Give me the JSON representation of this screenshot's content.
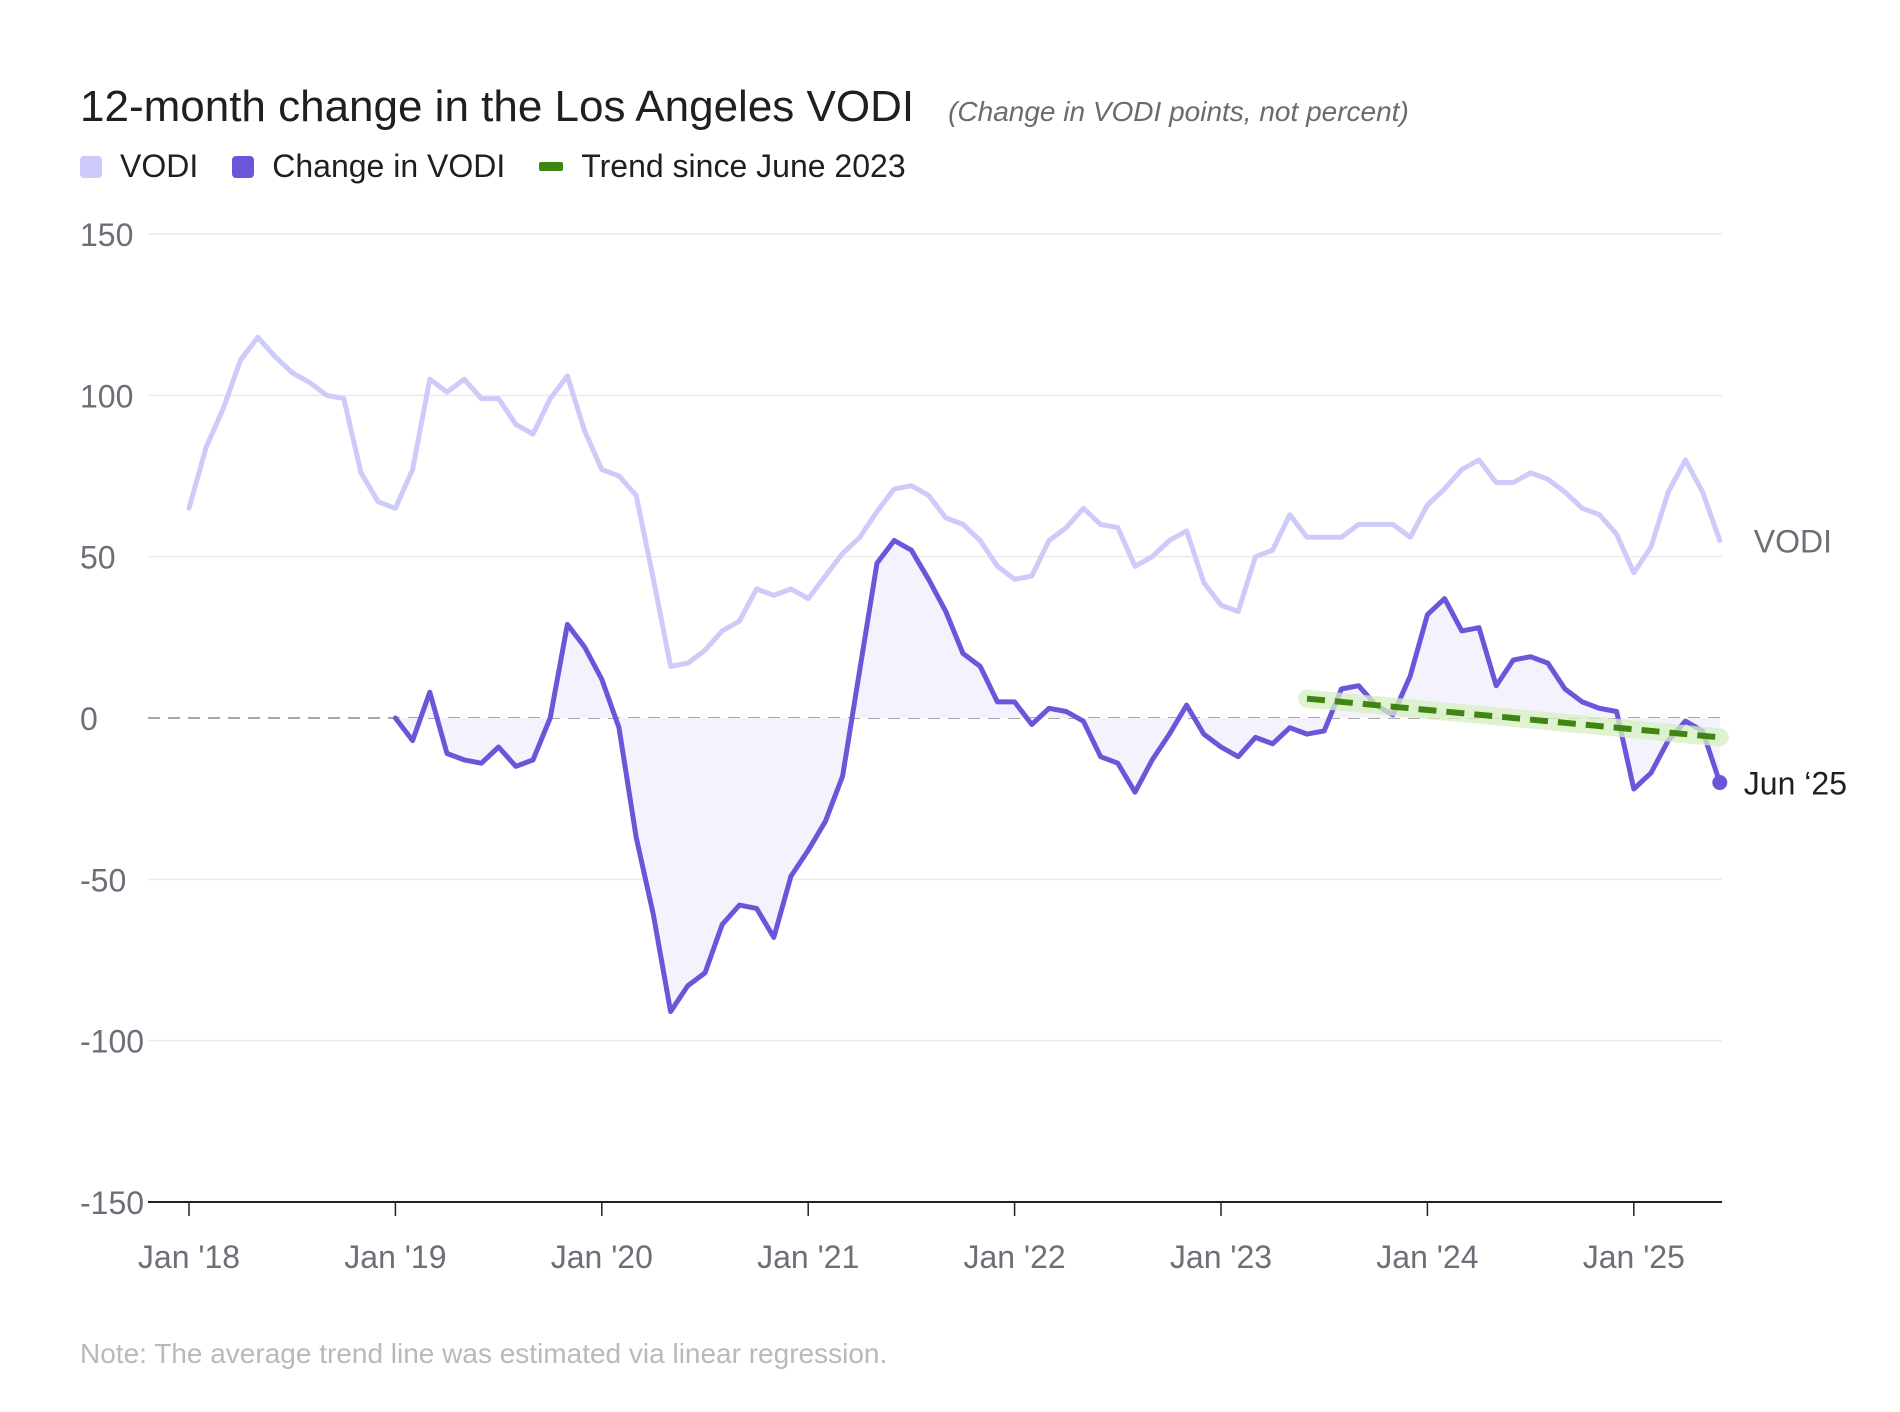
{
  "title": "12-month change in the Los Angeles VODI",
  "subtitle": "(Change in VODI points, not percent)",
  "legend": [
    {
      "label": "VODI",
      "color": "#cdcbfa",
      "shape": "square"
    },
    {
      "label": "Change in VODI",
      "color": "#6a56d9",
      "shape": "square"
    },
    {
      "label": "Trend since June 2023",
      "color": "#3f8512",
      "shape": "dash"
    }
  ],
  "note": "Note: The average trend line was estimated via linear regression.",
  "colors": {
    "vodi": "#cdcbfa",
    "change": "#6a56d9",
    "trend": "#3f8512",
    "trend_halo": "#d6f0c2",
    "fill": "#f4f3fd",
    "grid": "#ebebeb",
    "axis": "#222222",
    "zero_line": "#888888",
    "tick_text": "#6e6e78"
  },
  "chart_data": {
    "type": "line",
    "title": "12-month change in the Los Angeles VODI",
    "subtitle": "(Change in VODI points, not percent)",
    "ylim": [
      -150,
      150
    ],
    "yticks": [
      150,
      100,
      50,
      0,
      -50,
      -100,
      -150
    ],
    "xticks": [
      {
        "label": "Jan '18",
        "month": 0
      },
      {
        "label": "Jan '19",
        "month": 12
      },
      {
        "label": "Jan '20",
        "month": 24
      },
      {
        "label": "Jan '21",
        "month": 36
      },
      {
        "label": "Jan '22",
        "month": 48
      },
      {
        "label": "Jan '23",
        "month": 60
      },
      {
        "label": "Jan '24",
        "month": 72
      },
      {
        "label": "Jan '25",
        "month": 84
      }
    ],
    "x_start": "Jan 2018",
    "x_end": "Jun 2025",
    "grid": true,
    "legend_position": "top-left",
    "series": [
      {
        "name": "VODI",
        "start": "Jan 2018",
        "values": [
          65,
          84,
          96,
          111,
          118,
          112,
          107,
          104,
          100,
          99,
          76,
          67,
          65,
          77,
          105,
          101,
          105,
          99,
          99,
          91,
          88,
          99,
          106,
          89,
          77,
          75,
          69,
          43,
          16,
          17,
          21,
          27,
          30,
          40,
          38,
          40,
          37,
          44,
          51,
          56,
          64,
          71,
          72,
          69,
          62,
          60,
          55,
          47,
          43,
          44,
          55,
          59,
          65,
          60,
          59,
          47,
          50,
          55,
          58,
          42,
          35,
          33,
          50,
          52,
          63,
          56,
          56,
          56,
          60,
          60,
          60,
          56,
          66,
          71,
          77,
          80,
          73,
          73,
          76,
          74,
          70,
          65,
          63,
          57,
          45,
          53,
          70,
          80,
          70,
          55
        ]
      },
      {
        "name": "Change in VODI",
        "start": "Jan 2019",
        "values": [
          0,
          -7,
          8,
          -11,
          -13,
          -14,
          -9,
          -15,
          -13,
          0,
          29,
          22,
          12,
          -3,
          -37,
          -61,
          -91,
          -83,
          -79,
          -64,
          -58,
          -59,
          -68,
          -49,
          -41,
          -32,
          -18,
          15,
          48,
          55,
          52,
          43,
          33,
          20,
          16,
          5,
          5,
          -2,
          3,
          2,
          -1,
          -12,
          -14,
          -23,
          -13,
          -5,
          4,
          -5,
          -9,
          -12,
          -6,
          -8,
          -3,
          -5,
          -4,
          9,
          10,
          4,
          1,
          13,
          32,
          37,
          27,
          28,
          10,
          18,
          19,
          17,
          9,
          5,
          3,
          2,
          -22,
          -17,
          -7,
          -1,
          -4,
          -20
        ]
      },
      {
        "name": "Trend since June 2023",
        "start": "Jun 2023",
        "values": [
          6,
          -6
        ],
        "end": "Jun 2025",
        "style": "dashed"
      }
    ],
    "annotations": [
      {
        "text": "VODI",
        "series": "VODI",
        "position": "line end"
      },
      {
        "text": "Jun ‘25",
        "series": "Change in VODI",
        "position": "last point"
      }
    ]
  }
}
